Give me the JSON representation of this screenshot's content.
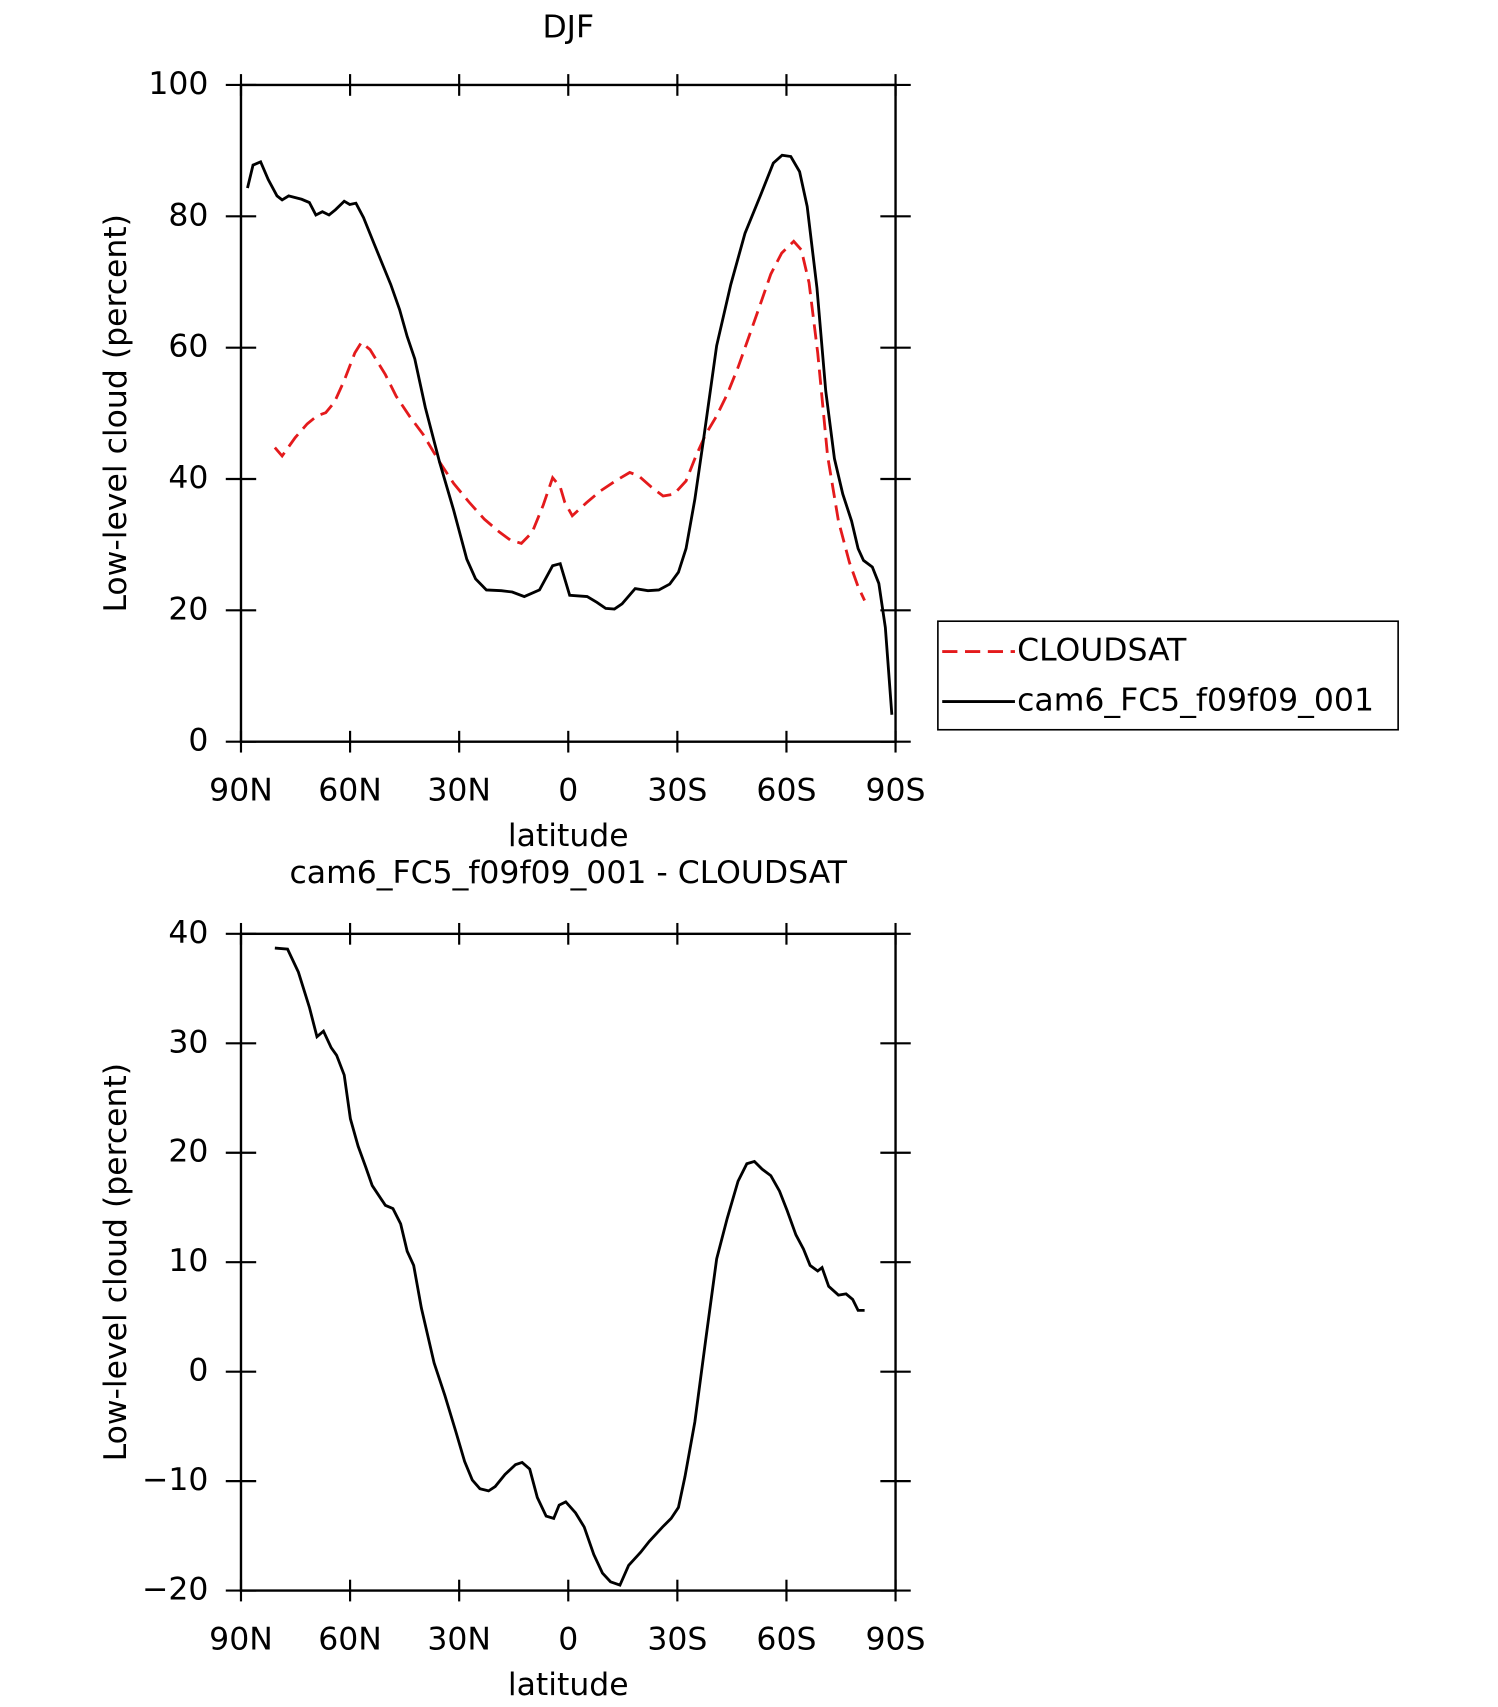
{
  "chart_data": [
    {
      "type": "line",
      "title": "DJF",
      "xlabel": "latitude",
      "ylabel": "Low-level cloud (percent)",
      "xlim": [
        90,
        -90
      ],
      "xticks": [
        {
          "value": 90,
          "label": "90N"
        },
        {
          "value": 60,
          "label": "60N"
        },
        {
          "value": 30,
          "label": "30N"
        },
        0,
        {
          "value": -30,
          "label": "30S"
        },
        {
          "value": -60,
          "label": "60S"
        },
        {
          "value": -90,
          "label": "90S"
        }
      ],
      "ylim": [
        0,
        100
      ],
      "yticks": [
        0,
        20,
        40,
        60,
        80,
        100
      ],
      "legend": "right",
      "series": [
        {
          "name": "CLOUDSAT",
          "color": "#e41a1c",
          "linestyle": "dashed",
          "x": [
            80.7,
            78.7,
            75.1,
            71.8,
            69.1,
            66.7,
            64.3,
            61.6,
            58.7,
            56.9,
            54.5,
            50.3,
            47.3,
            43.7,
            39.9,
            35.4,
            31.5,
            27.3,
            23.1,
            18.9,
            15.9,
            12.9,
            9.9,
            6.9,
            4.3,
            2.2,
            1.0,
            -1.1,
            -5.0,
            -8.9,
            -13.0,
            -16.9,
            -19.3,
            -22.8,
            -26.1,
            -29.1,
            -32.4,
            -35.1,
            -37.8,
            -40.8,
            -43.7,
            -46.7,
            -49.7,
            -52.8,
            -55.7,
            -58.7,
            -62.0,
            -64.1,
            -66.2,
            -68.6,
            -71.3,
            -74.3,
            -77.3,
            -79.7,
            -81.5
          ],
          "values": [
            44.8,
            43.5,
            46.3,
            48.4,
            49.6,
            50.1,
            51.7,
            55.0,
            59.2,
            60.8,
            59.7,
            55.9,
            52.6,
            49.6,
            46.8,
            42.6,
            39.3,
            36.5,
            33.9,
            31.9,
            30.7,
            30.2,
            31.9,
            36.0,
            40.2,
            38.8,
            36.5,
            34.4,
            36.4,
            38.2,
            39.7,
            41.0,
            40.5,
            38.8,
            37.4,
            37.7,
            39.7,
            43.5,
            46.8,
            49.6,
            52.9,
            57.0,
            61.7,
            66.6,
            71.2,
            74.4,
            76.2,
            74.9,
            69.9,
            59.2,
            43.5,
            33.6,
            27.3,
            23.6,
            21.5
          ]
        },
        {
          "name": "cam6_FC5_f09f09_001",
          "color": "#000000",
          "linestyle": "solid",
          "x": [
            88.2,
            86.7,
            84.6,
            82.5,
            80.1,
            78.7,
            76.9,
            73.3,
            71.2,
            69.4,
            67.6,
            65.8,
            64.0,
            61.6,
            60.1,
            58.4,
            56.3,
            53.3,
            48.8,
            46.4,
            44.3,
            42.2,
            39.3,
            35.4,
            31.5,
            27.9,
            25.5,
            22.5,
            18.4,
            15.4,
            12.1,
            7.9,
            4.3,
            2.2,
            -0.4,
            -5.2,
            -7.9,
            -10.3,
            -12.7,
            -14.8,
            -18.4,
            -21.9,
            -24.9,
            -27.9,
            -30.3,
            -32.4,
            -34.8,
            -37.2,
            -40.8,
            -44.7,
            -48.6,
            -52.8,
            -56.4,
            -58.8,
            -61.2,
            -63.6,
            -65.7,
            -68.4,
            -70.8,
            -73.2,
            -75.5,
            -77.9,
            -79.7,
            -81.2,
            -83.6,
            -85.4,
            -87.2,
            -89.0
          ],
          "values": [
            84.3,
            87.8,
            88.3,
            85.6,
            83.1,
            82.5,
            83.1,
            82.6,
            82.1,
            80.2,
            80.7,
            80.2,
            81.0,
            82.3,
            81.8,
            82.0,
            79.8,
            75.7,
            69.6,
            65.8,
            61.7,
            58.3,
            50.9,
            42.6,
            35.2,
            27.8,
            24.8,
            23.1,
            23.0,
            22.8,
            22.1,
            23.1,
            26.8,
            27.1,
            22.3,
            22.1,
            21.2,
            20.3,
            20.2,
            21.0,
            23.3,
            23.0,
            23.1,
            24.0,
            25.8,
            29.4,
            36.9,
            46.0,
            60.3,
            69.6,
            77.4,
            83.1,
            88.1,
            89.3,
            89.1,
            86.8,
            81.5,
            69.1,
            53.4,
            43.1,
            37.7,
            33.6,
            29.4,
            27.6,
            26.6,
            24.1,
            17.4,
            4.1
          ]
        }
      ]
    },
    {
      "type": "line",
      "title": "cam6_FC5_f09f09_001 - CLOUDSAT",
      "xlabel": "latitude",
      "ylabel": "Low-level cloud (percent)",
      "xlim": [
        90,
        -90
      ],
      "xticks": [
        {
          "value": 90,
          "label": "90N"
        },
        {
          "value": 60,
          "label": "60N"
        },
        {
          "value": 30,
          "label": "30N"
        },
        0,
        {
          "value": -30,
          "label": "30S"
        },
        {
          "value": -60,
          "label": "60S"
        },
        {
          "value": -90,
          "label": "90S"
        }
      ],
      "ylim": [
        -20,
        40
      ],
      "yticks": [
        {
          "value": -20,
          "label": "−20"
        },
        {
          "value": -10,
          "label": "−10"
        },
        0,
        10,
        20,
        30,
        40
      ],
      "series": [
        {
          "color": "#000000",
          "linestyle": "solid",
          "x": [
            80.7,
            77.2,
            74.2,
            71.2,
            69.1,
            67.3,
            65.2,
            63.7,
            61.6,
            59.9,
            57.8,
            55.7,
            53.9,
            50.3,
            48.2,
            46.1,
            44.3,
            42.5,
            40.4,
            36.9,
            33.9,
            30.9,
            28.5,
            26.4,
            24.3,
            21.9,
            20.1,
            17.4,
            14.5,
            12.7,
            10.6,
            8.5,
            6.1,
            4.0,
            2.5,
            0.7,
            -2.0,
            -4.4,
            -7.0,
            -9.4,
            -11.6,
            -14.2,
            -16.6,
            -19.9,
            -22.3,
            -25.9,
            -28.3,
            -30.3,
            -32.1,
            -34.8,
            -37.8,
            -40.8,
            -43.7,
            -46.7,
            -49.1,
            -51.2,
            -53.3,
            -55.7,
            -58.1,
            -60.2,
            -62.6,
            -64.7,
            -66.5,
            -68.6,
            -69.8,
            -71.6,
            -74.3,
            -76.4,
            -78.2,
            -79.7,
            -81.5
          ],
          "values": [
            38.7,
            38.6,
            36.5,
            33.3,
            30.6,
            31.1,
            29.6,
            28.9,
            27.1,
            23.1,
            20.6,
            18.7,
            17.0,
            15.2,
            14.9,
            13.5,
            11.0,
            9.7,
            5.8,
            0.8,
            -2.2,
            -5.5,
            -8.2,
            -9.9,
            -10.7,
            -10.9,
            -10.5,
            -9.4,
            -8.5,
            -8.3,
            -8.9,
            -11.5,
            -13.2,
            -13.4,
            -12.2,
            -11.9,
            -12.9,
            -14.2,
            -16.7,
            -18.4,
            -19.2,
            -19.5,
            -17.7,
            -16.5,
            -15.5,
            -14.2,
            -13.4,
            -12.4,
            -9.6,
            -4.6,
            2.9,
            10.3,
            14.0,
            17.4,
            19.0,
            19.2,
            18.5,
            17.9,
            16.5,
            14.7,
            12.5,
            11.2,
            9.7,
            9.2,
            9.5,
            7.8,
            7.0,
            7.1,
            6.6,
            5.6,
            5.6
          ]
        }
      ]
    }
  ]
}
